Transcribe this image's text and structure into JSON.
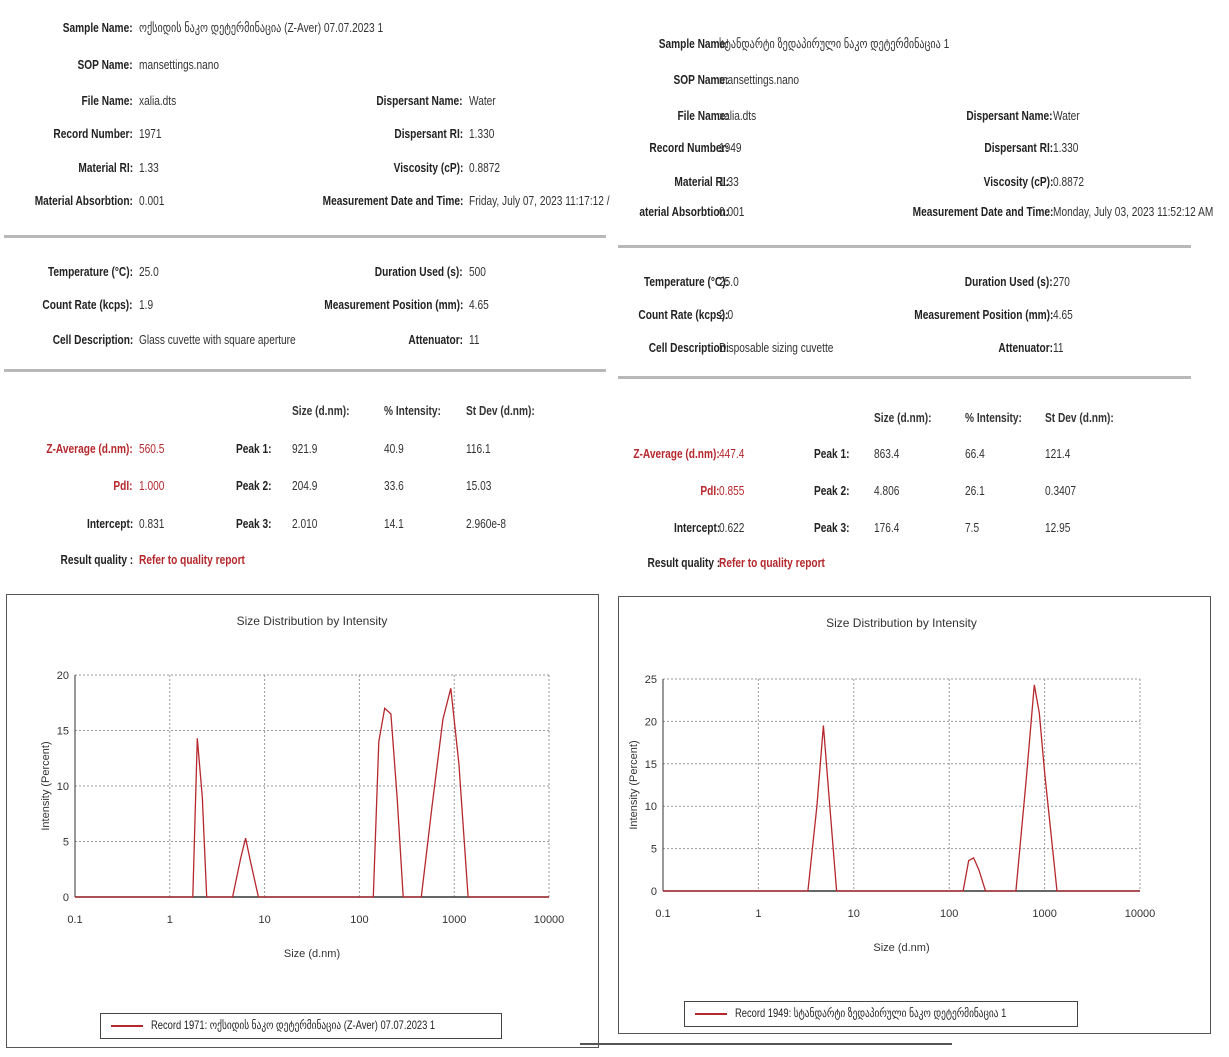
{
  "colors": {
    "accent": "#b5282d",
    "grid": "#9a9a9a",
    "separator": "#b8b8b8"
  },
  "records": [
    {
      "sample_name_label": "Sample Name:",
      "sample_name": "ოქსიდის ნაკო დეტერმინაცია (Z-Aver) 07.07.2023 1",
      "sop_name_label": "SOP Name:",
      "sop_name": "mansettings.nano",
      "file_name_label": "File Name:",
      "file_name": "xalia.dts",
      "record_number_label": "Record Number:",
      "record_number": "1971",
      "material_ri_label": "Material RI:",
      "material_ri": "1.33",
      "material_abs_label": "Material Absorbtion:",
      "material_abs": "0.001",
      "dispersant_name_label": "Dispersant Name:",
      "dispersant_name": "Water",
      "dispersant_ri_label": "Dispersant RI:",
      "dispersant_ri": "1.330",
      "viscosity_label": "Viscosity (cP):",
      "viscosity": "0.8872",
      "meas_date_label": "Measurement Date and Time:",
      "meas_date": "Friday, July 07, 2023 11:17:12 /",
      "temperature_label": "Temperature (°C):",
      "temperature": "25.0",
      "count_rate_label": "Count Rate (kcps):",
      "count_rate": "1.9",
      "cell_desc_label": "Cell Description:",
      "cell_desc": "Glass cuvette with square aperture",
      "duration_label": "Duration Used (s):",
      "duration": "500",
      "position_label": "Measurement Position (mm):",
      "position": "4.65",
      "attenuator_label": "Attenuator:",
      "attenuator": "11",
      "col_size": "Size (d.nm):",
      "col_intensity": "% Intensity:",
      "col_stdev": "St Dev (d.nm):",
      "zavg_label": "Z-Average (d.nm):",
      "zavg": "560.5",
      "pdi_label": "PdI:",
      "pdi": "1.000",
      "intercept_label": "Intercept:",
      "intercept": "0.831",
      "peaks": [
        {
          "label": "Peak 1:",
          "size": "921.9",
          "intensity": "40.9",
          "stdev": "116.1"
        },
        {
          "label": "Peak 2:",
          "size": "204.9",
          "intensity": "33.6",
          "stdev": "15.03"
        },
        {
          "label": "Peak 3:",
          "size": "2.010",
          "intensity": "14.1",
          "stdev": "2.960e-8"
        }
      ],
      "result_quality_label": "Result quality :",
      "result_quality_link": "Refer to quality report",
      "legend": "Record 1971: ოქსიდის ნაკო დეტერმინაცია (Z-Aver) 07.07.2023 1"
    },
    {
      "sample_name_label": "Sample Name:",
      "sample_name": "სტანდარტი ზედაპირული ნაკო დეტერმინაცია 1",
      "sop_name_label": "SOP Name:",
      "sop_name": "mansettings.nano",
      "file_name_label": "File Name:",
      "file_name": "xalia.dts",
      "record_number_label": "Record Number:",
      "record_number": "1949",
      "material_ri_label": "Material RI:",
      "material_ri": "1.33",
      "material_abs_label": "aterial Absorbtion:",
      "material_abs": "0.001",
      "dispersant_name_label": "Dispersant Name:",
      "dispersant_name": "Water",
      "dispersant_ri_label": "Dispersant RI:",
      "dispersant_ri": "1.330",
      "viscosity_label": "Viscosity (cP):",
      "viscosity": "0.8872",
      "meas_date_label": "Measurement Date and Time:",
      "meas_date": "Monday, July 03, 2023 11:52:12 AM",
      "temperature_label": "Temperature (°C):",
      "temperature": "25.0",
      "count_rate_label": "Count Rate (kcps):",
      "count_rate": "2.0",
      "cell_desc_label": "Cell Description:",
      "cell_desc": "Disposable sizing cuvette",
      "duration_label": "Duration Used (s):",
      "duration": "270",
      "position_label": "Measurement Position (mm):",
      "position": "4.65",
      "attenuator_label": "Attenuator:",
      "attenuator": "11",
      "col_size": "Size (d.nm):",
      "col_intensity": "% Intensity:",
      "col_stdev": "St Dev (d.nm):",
      "zavg_label": "Z-Average (d.nm):",
      "zavg": "447.4",
      "pdi_label": "PdI:",
      "pdi": "0.855",
      "intercept_label": "Intercept:",
      "intercept": "0.622",
      "peaks": [
        {
          "label": "Peak 1:",
          "size": "863.4",
          "intensity": "66.4",
          "stdev": "121.4"
        },
        {
          "label": "Peak 2:",
          "size": "4.806",
          "intensity": "26.1",
          "stdev": "0.3407"
        },
        {
          "label": "Peak 3:",
          "size": "176.4",
          "intensity": "7.5",
          "stdev": "12.95"
        }
      ],
      "result_quality_label": "Result quality :",
      "result_quality_link": "Refer to quality report",
      "legend": "Record 1949: სტანდარტი ზედაპირული ნაკო დეტერმინაცია 1"
    }
  ],
  "chart_data": [
    {
      "type": "line",
      "title": "Size Distribution by Intensity",
      "xlabel": "Size (d.nm)",
      "ylabel": "Intensity (Percent)",
      "x_scale": "log",
      "xlim": [
        0.1,
        10000
      ],
      "ylim": [
        0,
        20
      ],
      "x_ticks": [
        "0.1",
        "1",
        "10",
        "100",
        "1000",
        "10000"
      ],
      "y_ticks": [
        "0",
        "5",
        "10",
        "15",
        "20"
      ],
      "grid": true,
      "legend_position": "bottom",
      "series": [
        {
          "name": "Record 1971: ოქსიდის ნაკო დეტერმინაცია (Z-Aver) 07.07.2023 1",
          "x": [
            0.1,
            1.75,
            1.95,
            2.2,
            2.45,
            4.6,
            5.6,
            6.3,
            7.1,
            8.6,
            140,
            160,
            185,
            215,
            250,
            290,
            450,
            580,
            760,
            920,
            1120,
            1400,
            10000
          ],
          "y": [
            0,
            0,
            14.3,
            9,
            0,
            0,
            3.5,
            5.3,
            3.2,
            0,
            0,
            14,
            17,
            16.5,
            9,
            0,
            0,
            8,
            16,
            18.8,
            12,
            0,
            0
          ]
        }
      ]
    },
    {
      "type": "line",
      "title": "Size Distribution by Intensity",
      "xlabel": "Size (d.nm)",
      "ylabel": "Intensity (Percent)",
      "x_scale": "log",
      "xlim": [
        0.1,
        10000
      ],
      "ylim": [
        0,
        25
      ],
      "x_ticks": [
        "0.1",
        "1",
        "10",
        "100",
        "1000",
        "10000"
      ],
      "y_ticks": [
        "0",
        "5",
        "10",
        "15",
        "20",
        "25"
      ],
      "grid": true,
      "legend_position": "bottom",
      "series": [
        {
          "name": "Record 1949: სტანდარტი ზედაპირული ნაკო დეტერმინაცია 1",
          "x": [
            0.1,
            3.3,
            4.1,
            4.8,
            5.6,
            6.6,
            140,
            160,
            180,
            205,
            240,
            500,
            640,
            780,
            880,
            1000,
            1350,
            10000
          ],
          "y": [
            0,
            0,
            10,
            19.5,
            10,
            0,
            0,
            3.6,
            3.9,
            2.5,
            0,
            0,
            13,
            24.3,
            21,
            14,
            0,
            0
          ]
        }
      ]
    }
  ]
}
